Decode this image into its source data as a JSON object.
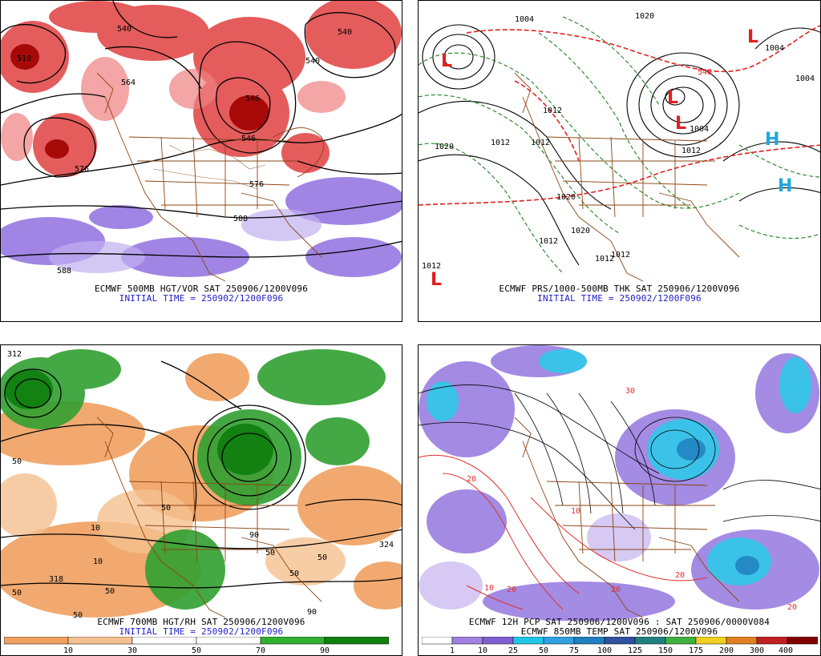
{
  "panels": [
    {
      "id": "tl",
      "caption_line1": "ECMWF 500MB HGT/VOR SAT 250906/1200V096",
      "caption_line2": "INITIAL TIME = 250902/1200F096",
      "contour_labels": [
        "540",
        "546",
        "510",
        "540",
        "564",
        "576",
        "576",
        "588",
        "588",
        "546",
        "540"
      ]
    },
    {
      "id": "tr",
      "caption_line1": "ECMWF PRS/1000-500MB THK SAT 250906/1200V096",
      "caption_line2": "INITIAL TIME = 250902/1200F096",
      "contour_labels": [
        "1004",
        "1020",
        "1004",
        "1020",
        "1012",
        "1012",
        "1020",
        "1004",
        "1012",
        "1012",
        "1012",
        "1020",
        "1012",
        "1004",
        "1012",
        "1012",
        "540"
      ],
      "symbols": [
        "L",
        "L",
        "L",
        "L",
        "L",
        "H",
        "H"
      ]
    },
    {
      "id": "bl",
      "caption_line1": "ECMWF 700MB HGT/RH SAT 250906/1200V096",
      "caption_line2": "INITIAL TIME = 250902/1200F096",
      "contour_labels": [
        "312",
        "50",
        "10",
        "318",
        "50",
        "50",
        "90",
        "50",
        "50",
        "324",
        "50",
        "10",
        "50",
        "50",
        "90"
      ],
      "colorbar": {
        "labels": [
          "10",
          "30",
          "50",
          "70",
          "90"
        ],
        "colors": [
          "#f0a060",
          "#f5c090",
          "#ffffff",
          "#ffffff",
          "#30b030",
          "#108010"
        ]
      }
    },
    {
      "id": "br",
      "caption_line1": "ECMWF 12H PCP SAT 250906/1200V096 : SAT 250906/0000V084",
      "caption_line2": "ECMWF 850MB TEMP SAT 250906/1200V096",
      "contour_labels": [
        "10",
        "20",
        "20",
        "30",
        "20",
        "10",
        "20",
        "20"
      ],
      "colorbar": {
        "labels": [
          "1",
          "10",
          "25",
          "50",
          "75",
          "100",
          "125",
          "150",
          "175",
          "200",
          "300",
          "400"
        ],
        "colors": [
          "#ffffff",
          "#a080e0",
          "#8060d0",
          "#20c8e8",
          "#30a0e0",
          "#2080c0",
          "#3050a0",
          "#208080",
          "#40b040",
          "#f0d020",
          "#e08020",
          "#c02020",
          "#800000",
          "#a08080"
        ]
      }
    }
  ]
}
